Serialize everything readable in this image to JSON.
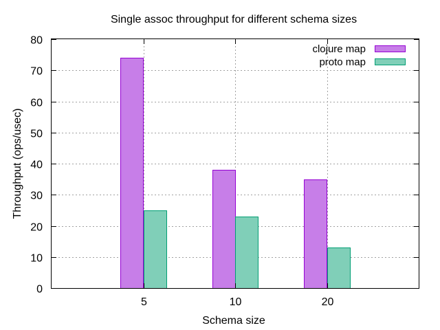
{
  "chart_data": {
    "type": "bar",
    "title": "Single assoc throughput for different schema sizes",
    "xlabel": "Schema size",
    "ylabel": "Throughput (ops/usec)",
    "categories": [
      "5",
      "10",
      "20"
    ],
    "ylim": [
      0,
      80
    ],
    "yticks": [
      0,
      10,
      20,
      30,
      40,
      50,
      60,
      70,
      80
    ],
    "grid": true,
    "legend_position": "top-right",
    "series": [
      {
        "name": "clojure map",
        "values": [
          74,
          38,
          35
        ],
        "color": "#c77ee8",
        "edge_color": "#9400d3"
      },
      {
        "name": "proto map",
        "values": [
          25,
          23,
          13
        ],
        "color": "#80cfb8",
        "edge_color": "#009e73"
      }
    ]
  }
}
